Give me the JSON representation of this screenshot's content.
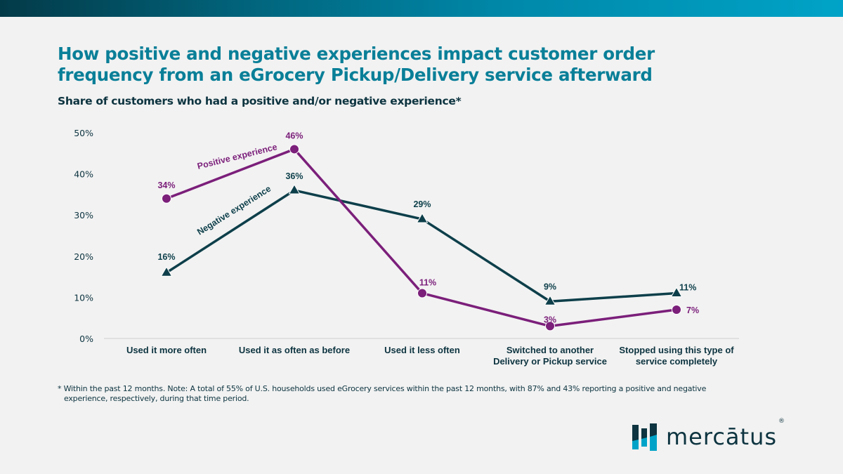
{
  "header": {
    "title_line1": "How positive and negative experiences impact customer order",
    "title_line2": "frequency from an eGrocery Pickup/Delivery service afterward",
    "subtitle": "Share of customers who had a positive and/or negative experience*"
  },
  "colors": {
    "positive": "#7b1f7a",
    "negative": "#0d3f4a",
    "title": "#0a7f98",
    "axis_text": "#0d3440",
    "gridline": "#d6d6d6",
    "logo_dark": "#0d3440",
    "logo_light": "#00a3c7"
  },
  "chart_data": {
    "type": "line",
    "title": "Share of customers who had a positive and/or negative experience*",
    "xlabel": "",
    "ylabel": "",
    "ylim": [
      0,
      50
    ],
    "yticks": [
      0,
      10,
      20,
      30,
      40,
      50
    ],
    "ytick_labels": [
      "0%",
      "10%",
      "20%",
      "30%",
      "40%",
      "50%"
    ],
    "grid": false,
    "categories": [
      [
        "Used it more often"
      ],
      [
        "Used it as often as before"
      ],
      [
        "Used it less often"
      ],
      [
        "Switched to another",
        "Delivery or Pickup service"
      ],
      [
        "Stopped using this type of",
        "service completely"
      ]
    ],
    "series": [
      {
        "name": "Positive experience",
        "marker": "circle",
        "values": [
          34,
          46,
          11,
          3,
          7
        ],
        "labels": [
          "34%",
          "46%",
          "11%",
          "3%",
          "7%"
        ]
      },
      {
        "name": "Negative experience",
        "marker": "triangle",
        "values": [
          16,
          36,
          29,
          9,
          11
        ],
        "labels": [
          "16%",
          "36%",
          "29%",
          "9%",
          "11%"
        ]
      }
    ],
    "legend": "inline-labels-on-lines"
  },
  "footnote": {
    "line1": "* Within the past 12 months.  Note: A total of 55% of U.S. households used eGrocery services within the past 12 months, with 87% and 43% reporting a positive and negative",
    "line2": "experience, respectively, during that time period."
  },
  "logo": {
    "icon": "bar-chart-logo-icon",
    "wordmark": "mercātus",
    "registered": "®"
  }
}
